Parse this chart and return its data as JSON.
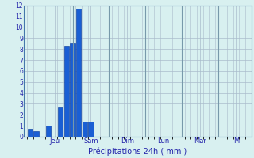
{
  "title": "",
  "xlabel": "Précipitations 24h ( mm )",
  "background_color": "#d8f0f0",
  "bar_color": "#1a5fd4",
  "bar_edge_color": "#003399",
  "ylim": [
    0,
    12
  ],
  "yticks": [
    0,
    1,
    2,
    3,
    4,
    5,
    6,
    7,
    8,
    9,
    10,
    11,
    12
  ],
  "grid_color": "#aabbcc",
  "text_color": "#2222aa",
  "day_labels": [
    "Jeu",
    "Sam",
    "Dim",
    "Lun",
    "Mar",
    "M"
  ],
  "day_tick_positions": [
    4.5,
    10.5,
    16.5,
    22.5,
    28.5,
    34.5
  ],
  "day_vline_positions": [
    7.5,
    13.5,
    19.5,
    25.5,
    31.5
  ],
  "bar_positions": [
    0.5,
    1.5,
    3.5,
    5.5,
    6.5,
    7.5,
    8.5,
    9.5,
    10.5
  ],
  "bar_heights": [
    0.7,
    0.5,
    1.0,
    2.7,
    8.3,
    8.5,
    11.7,
    1.35,
    1.35
  ],
  "bar_width": 0.85,
  "xlim": [
    -0.5,
    37
  ],
  "figsize": [
    3.2,
    2.0
  ],
  "dpi": 100
}
